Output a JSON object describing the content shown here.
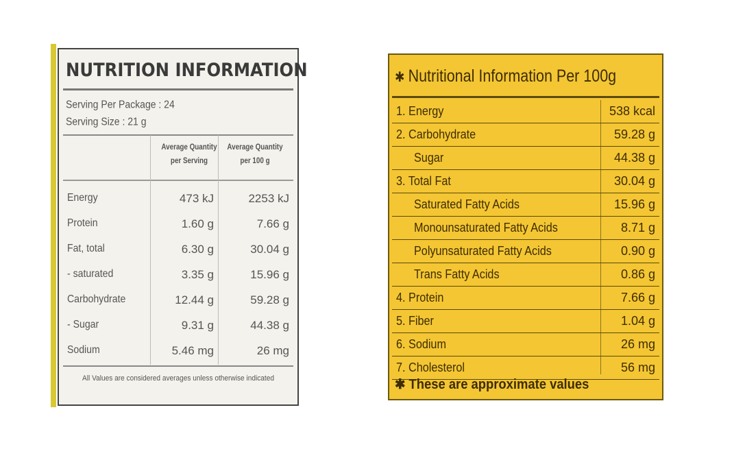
{
  "left_label": {
    "title": "NUTRITION INFORMATION",
    "serving_per_package": "Serving Per Package : 24",
    "serving_size": "Serving Size : 21 g",
    "col_serving": "Average Quantity per Serving",
    "col_100g": "Average Quantity per 100 g",
    "rows": [
      {
        "name": "Energy",
        "serving": "473 kJ",
        "per100": "2253 kJ"
      },
      {
        "name": "Protein",
        "serving": "1.60 g",
        "per100": "7.66 g"
      },
      {
        "name": "Fat, total",
        "serving": "6.30 g",
        "per100": "30.04 g"
      },
      {
        "name": "- saturated",
        "serving": "3.35 g",
        "per100": "15.96 g"
      },
      {
        "name": "Carbohydrate",
        "serving": "12.44 g",
        "per100": "59.28 g"
      },
      {
        "name": "- Sugar",
        "serving": "9.31 g",
        "per100": "44.38 g"
      },
      {
        "name": "Sodium",
        "serving": "5.46 mg",
        "per100": "26 mg"
      }
    ],
    "footnote": "All Values are considered averages unless otherwise indicated"
  },
  "right_label": {
    "star": "✱",
    "title": "Nutritional Information Per 100g",
    "rows": [
      {
        "name": "1. Energy",
        "value": "538 kcal",
        "indent": false
      },
      {
        "name": "2. Carbohydrate",
        "value": "59.28 g",
        "indent": false
      },
      {
        "name": "Sugar",
        "value": "44.38 g",
        "indent": true
      },
      {
        "name": "3. Total Fat",
        "value": "30.04 g",
        "indent": false
      },
      {
        "name": "Saturated Fatty Acids",
        "value": "15.96 g",
        "indent": true
      },
      {
        "name": "Monounsaturated Fatty Acids",
        "value": "8.71 g",
        "indent": true
      },
      {
        "name": "Polyunsaturated Fatty Acids",
        "value": "0.90 g",
        "indent": true
      },
      {
        "name": "Trans Fatty Acids",
        "value": "0.86 g",
        "indent": true
      },
      {
        "name": "4. Protein",
        "value": "7.66 g",
        "indent": false
      },
      {
        "name": "5. Fiber",
        "value": "1.04 g",
        "indent": false
      },
      {
        "name": "6. Sodium",
        "value": "26 mg",
        "indent": false
      },
      {
        "name": "7. Cholesterol",
        "value": "56 mg",
        "indent": false
      }
    ],
    "footnote": "✱ These are approximate values"
  },
  "colors": {
    "left_background": "#f3f2ec",
    "right_background": "#f4c633",
    "right_text": "#3e2d05"
  }
}
